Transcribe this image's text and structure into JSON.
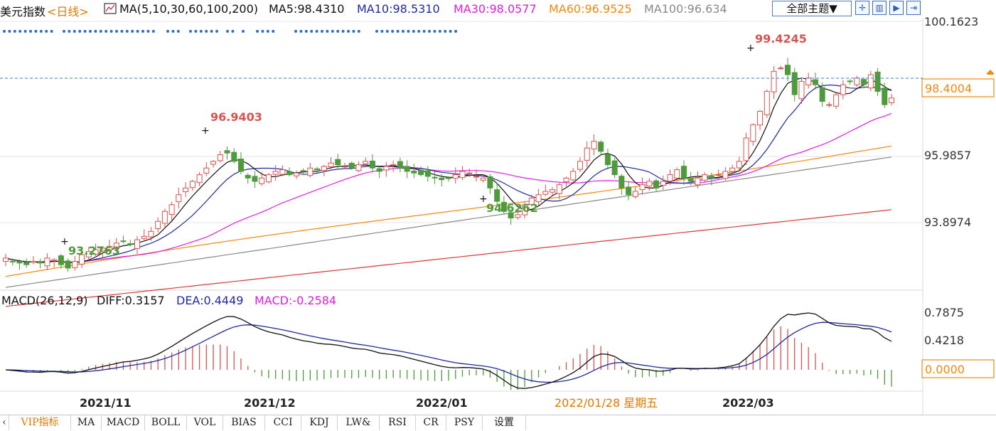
{
  "header": {
    "symbol": "美元指数",
    "period": "<日线>",
    "ma_label": "MA(5,10,30,60,100,200)",
    "ma5": "MA5:98.4310",
    "ma10": "MA10:98.5310",
    "ma30": "MA30:98.0577",
    "ma60": "MA60:96.9525",
    "ma100": "MA100:96.634",
    "theme_button": "全部主题▼"
  },
  "colors": {
    "up": "#d9534f",
    "down": "#4f9a3c",
    "ma5": "#111111",
    "ma10": "#1f2aa0",
    "ma30": "#e020e0",
    "ma60": "#f08a10",
    "ma100": "#8a8a8a",
    "ma200": "#d83a3a",
    "dashed": "#2f86c9",
    "grid": "#e6e6e6"
  },
  "price_axis": {
    "ticks": [
      "100.1623",
      "95.9857",
      "93.8974"
    ],
    "current": "98.4004"
  },
  "annotations": {
    "high1": "96.9403",
    "low1": "93.2763",
    "low2": "94.6262",
    "high2": "99.4245"
  },
  "macd": {
    "label": "MACD(26,12,9)",
    "diff": "DIFF:0.3157",
    "dea": "DEA:0.4449",
    "macd": "MACD:-0.2584",
    "ticks": [
      "0.7875",
      "0.4218",
      "0.0000"
    ]
  },
  "x_axis": {
    "labels": [
      "2021/11",
      "2021/12",
      "2022/01",
      "2022/03"
    ],
    "cursor_label": "2022/01/28 星期五"
  },
  "tabs": [
    "VIP指标",
    "MA",
    "MACD",
    "BOLL",
    "VOL",
    "BIAS",
    "CCI",
    "KDJ",
    "LW&",
    "RSI",
    "CR",
    "PSY",
    "设置"
  ],
  "icons": [
    "chart-icon",
    "crosshair-icon",
    "zoom-icon",
    "play-icon",
    "step-icon"
  ],
  "chart_data": {
    "type": "candlestick",
    "price_range": [
      92.7,
      100.7
    ],
    "closes": [
      93.6,
      93.5,
      93.45,
      93.4,
      93.5,
      93.45,
      93.6,
      93.55,
      93.4,
      93.3,
      93.5,
      93.7,
      93.8,
      93.85,
      93.9,
      93.95,
      94.05,
      94.1,
      94.0,
      94.15,
      94.25,
      94.4,
      94.7,
      95.0,
      95.2,
      95.5,
      95.7,
      95.9,
      96.1,
      96.3,
      96.5,
      96.7,
      96.75,
      96.5,
      96.2,
      96.0,
      95.9,
      96.0,
      96.1,
      96.2,
      96.25,
      96.1,
      96.15,
      96.2,
      96.3,
      96.25,
      96.35,
      96.45,
      96.4,
      96.35,
      96.3,
      96.4,
      96.5,
      96.3,
      96.2,
      96.35,
      96.4,
      96.3,
      96.2,
      96.15,
      96.1,
      96.05,
      96.0,
      95.95,
      96.0,
      96.1,
      96.2,
      96.15,
      96.05,
      96.0,
      95.7,
      95.3,
      95.0,
      94.8,
      94.9,
      95.2,
      95.4,
      95.5,
      95.6,
      95.65,
      95.8,
      96.0,
      96.2,
      96.5,
      96.9,
      97.1,
      96.8,
      96.4,
      96.1,
      95.7,
      95.5,
      95.6,
      95.8,
      95.9,
      95.7,
      95.9,
      96.1,
      96.25,
      96.0,
      95.9,
      96.0,
      96.1,
      96.0,
      96.1,
      96.2,
      96.3,
      96.5,
      97.2,
      97.6,
      98.0,
      98.6,
      99.2,
      99.3,
      99.1,
      98.5,
      98.9,
      99.0,
      98.8,
      98.3,
      98.2,
      98.5,
      98.8,
      98.9,
      99.0,
      98.8,
      99.1,
      98.6,
      98.2,
      98.4
    ]
  }
}
